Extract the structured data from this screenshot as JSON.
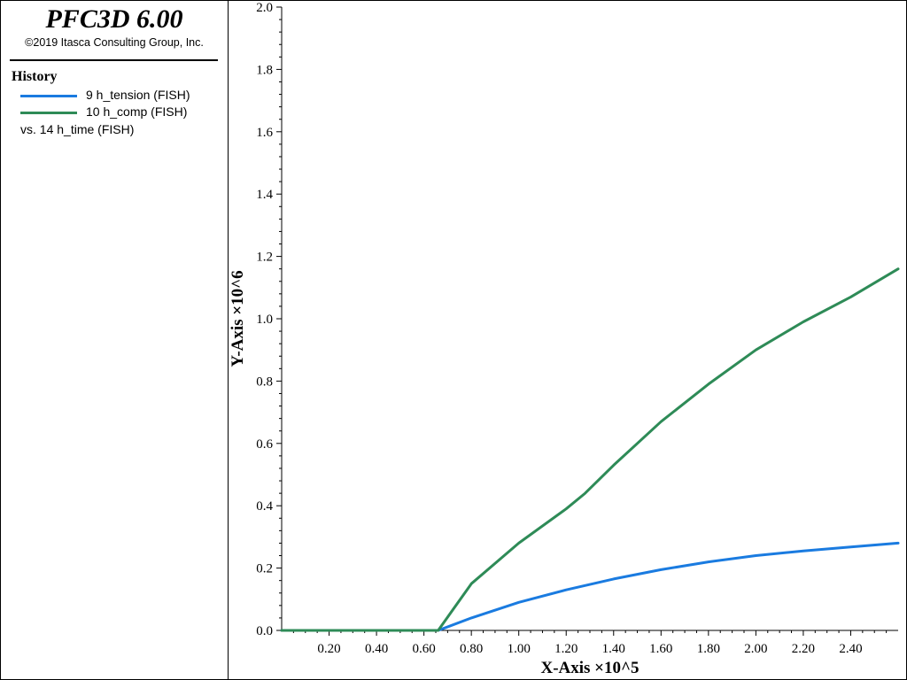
{
  "app": {
    "title": "PFC3D 6.00",
    "copyright": "©2019 Itasca Consulting Group, Inc."
  },
  "legend": {
    "heading": "History",
    "entries": [
      {
        "label": "9 h_tension (FISH)",
        "color": "#1a7be0"
      },
      {
        "label": "10 h_comp (FISH)",
        "color": "#2e8b57"
      }
    ],
    "vs_label": "vs. 14 h_time (FISH)"
  },
  "chart_data": {
    "type": "line",
    "xlabel": "X-Axis ×10^5",
    "ylabel": "Y-Axis ×10^6",
    "xlim": [
      0,
      2.6
    ],
    "ylim": [
      0,
      2.0
    ],
    "x_ticks": [
      "0.20",
      "0.40",
      "0.60",
      "0.80",
      "1.00",
      "1.20",
      "1.40",
      "1.60",
      "1.80",
      "2.00",
      "2.20",
      "2.40"
    ],
    "y_ticks": [
      "0.0",
      "0.2",
      "0.4",
      "0.6",
      "0.8",
      "1.0",
      "1.2",
      "1.4",
      "1.6",
      "1.8",
      "2.0"
    ],
    "grid": false,
    "series": [
      {
        "name": "9 h_tension (FISH)",
        "color": "#1a7be0",
        "x": [
          0.0,
          0.2,
          0.4,
          0.6,
          0.66,
          0.8,
          1.0,
          1.2,
          1.4,
          1.6,
          1.8,
          2.0,
          2.2,
          2.4,
          2.6
        ],
        "y": [
          0.0,
          0.0,
          0.0,
          0.0,
          0.0,
          0.04,
          0.09,
          0.13,
          0.165,
          0.195,
          0.22,
          0.24,
          0.255,
          0.268,
          0.28
        ]
      },
      {
        "name": "10 h_comp (FISH)",
        "color": "#2e8b57",
        "x": [
          0.0,
          0.2,
          0.4,
          0.6,
          0.66,
          0.8,
          1.0,
          1.2,
          1.28,
          1.4,
          1.6,
          1.8,
          2.0,
          2.2,
          2.4,
          2.6
        ],
        "y": [
          0.0,
          0.0,
          0.0,
          0.0,
          0.0,
          0.15,
          0.28,
          0.39,
          0.44,
          0.53,
          0.67,
          0.79,
          0.9,
          0.99,
          1.07,
          1.16
        ]
      }
    ]
  }
}
